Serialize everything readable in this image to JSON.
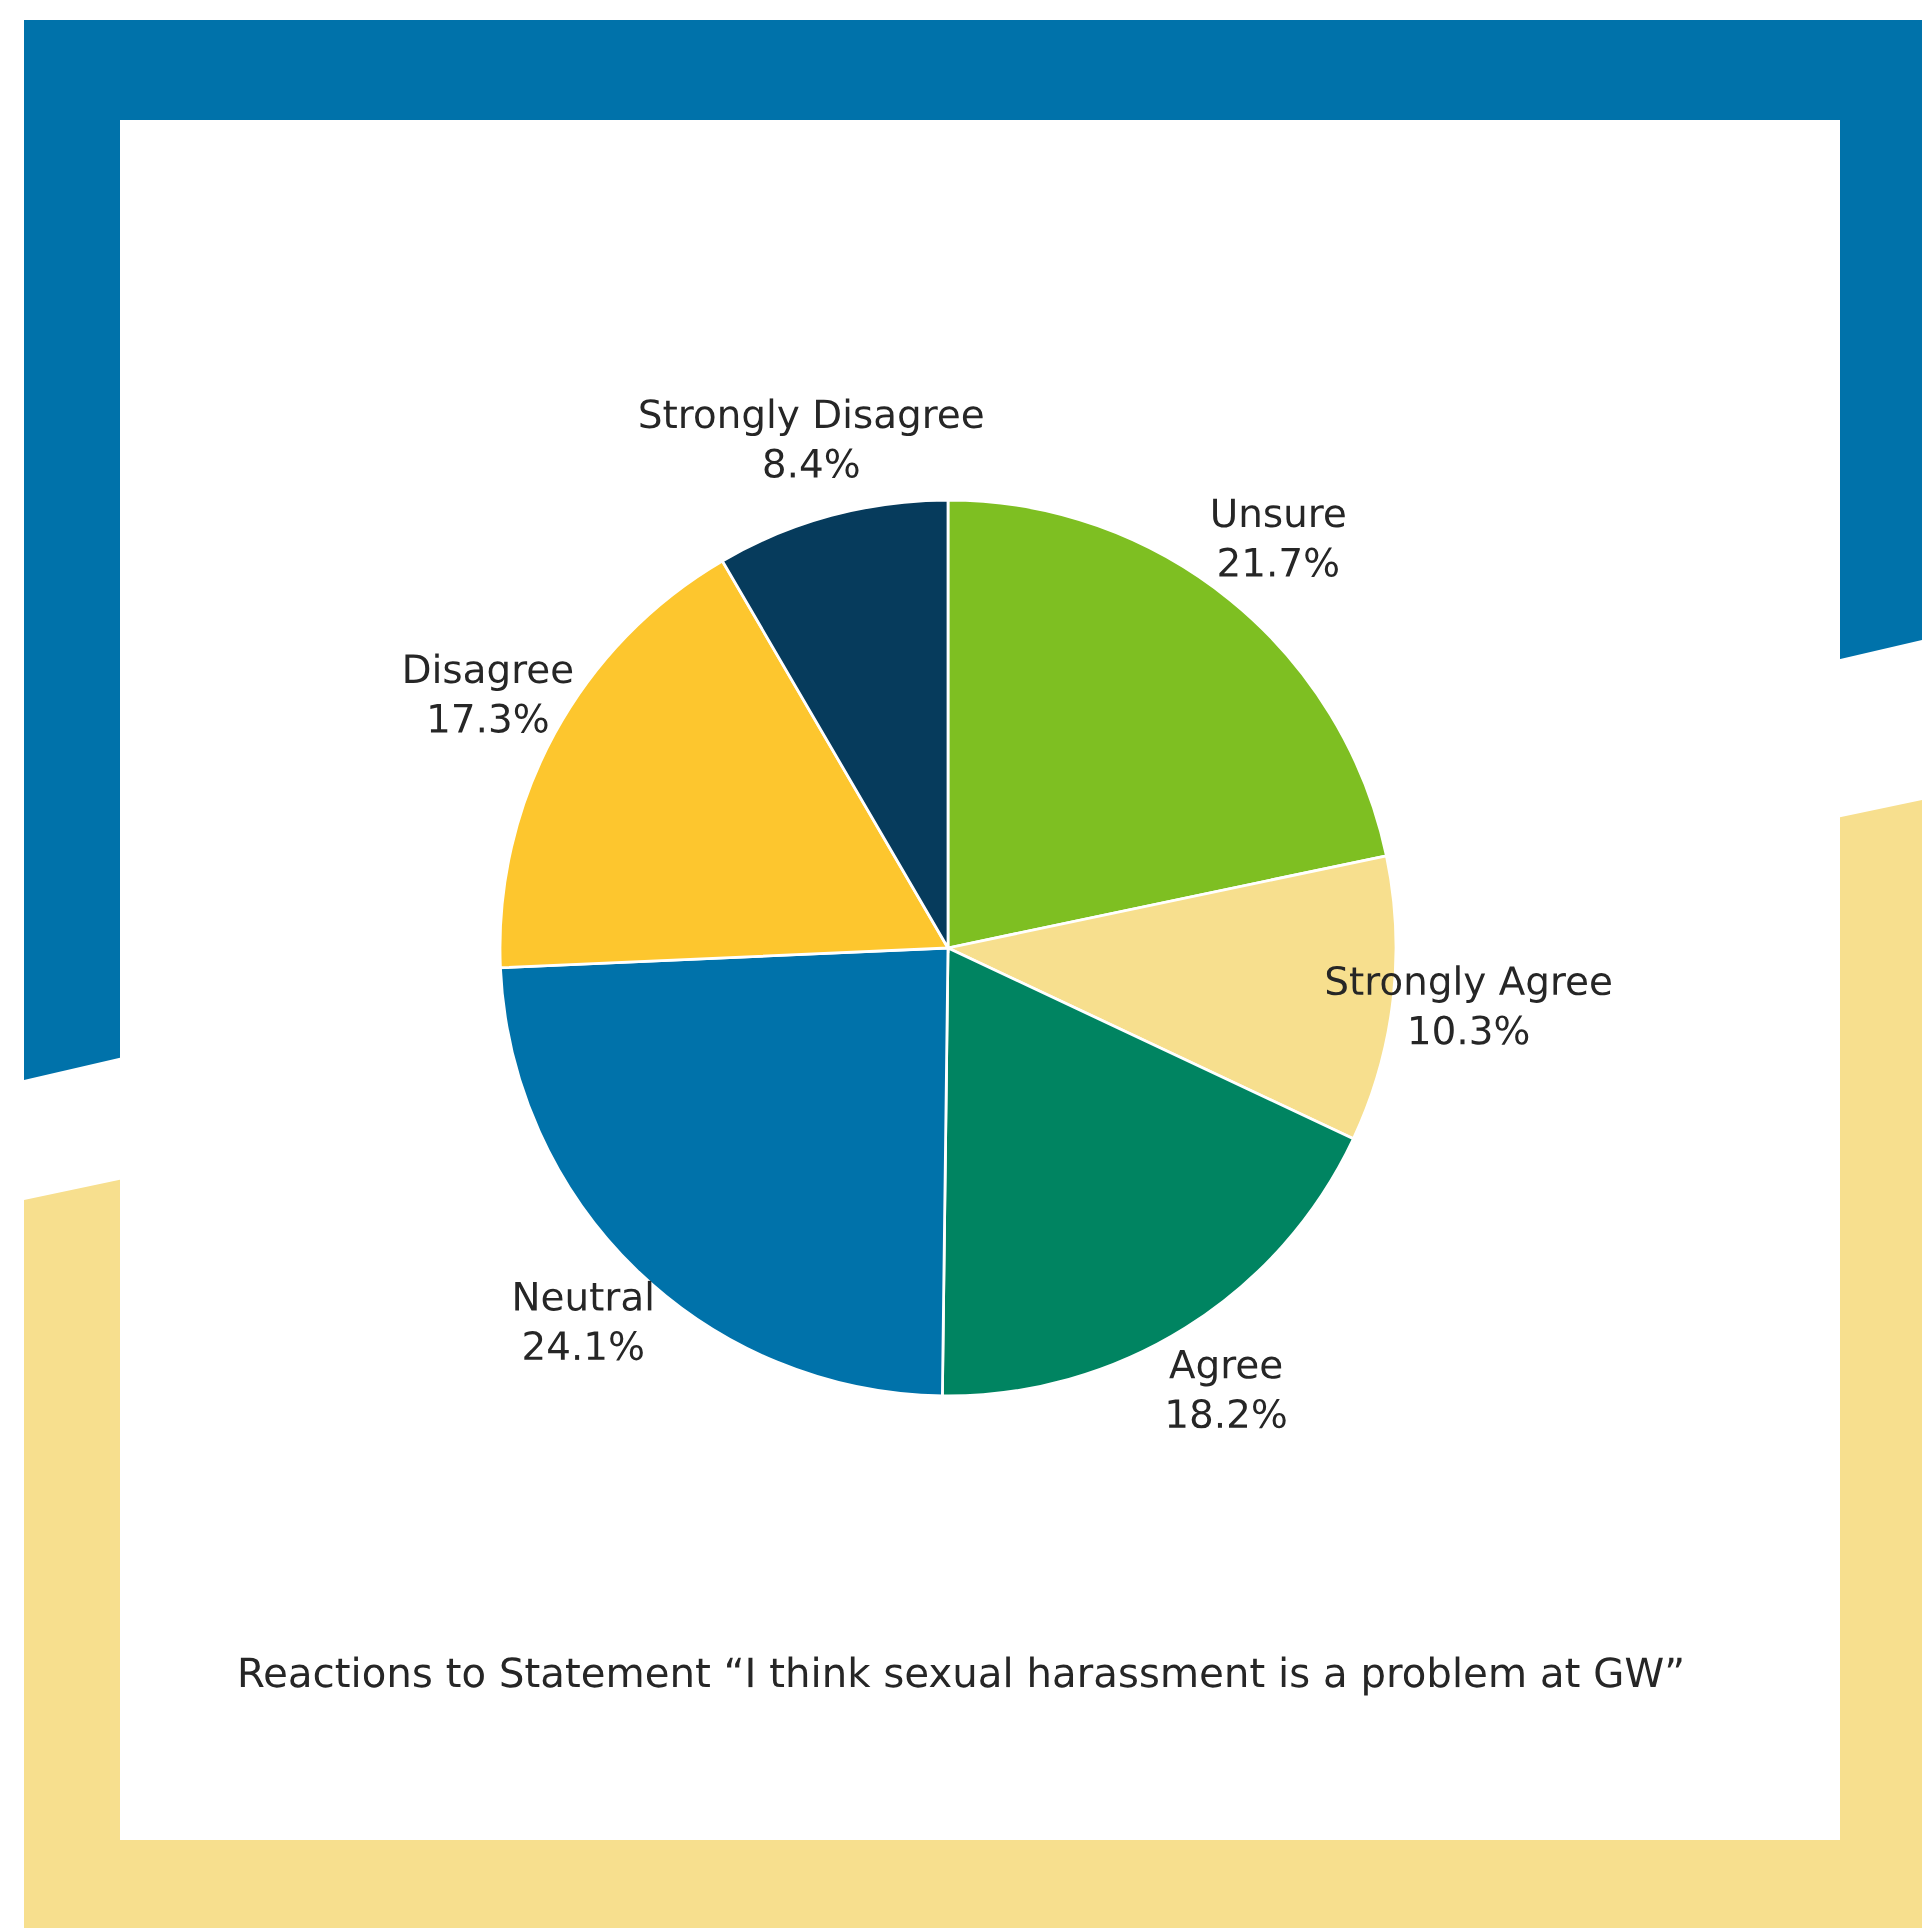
{
  "chart_data": {
    "type": "pie",
    "title": "Reactions to Statement “I think sexual harassment is a problem at GW”",
    "categories": [
      "Unsure",
      "Strongly Agree",
      "Agree",
      "Neutral",
      "Disagree",
      "Strongly Disagree"
    ],
    "values": [
      21.7,
      10.3,
      18.2,
      24.1,
      17.3,
      8.4
    ],
    "value_labels": [
      "21.7%",
      "10.3%",
      "18.2%",
      "24.1%",
      "17.3%",
      "8.4%"
    ],
    "colors": [
      "#7ebf22",
      "#f7df8e",
      "#008461",
      "#0072aa",
      "#fdc62e",
      "#063b5c"
    ],
    "legend": false
  }
}
